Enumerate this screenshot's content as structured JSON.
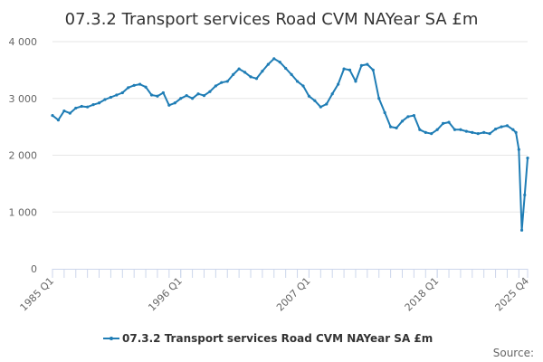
{
  "chart_data": {
    "type": "line",
    "title": "07.3.2 Transport services Road CVM NAYear SA £m",
    "xlabel": "",
    "ylabel": "",
    "ylim": [
      0,
      4000
    ],
    "yticks": [
      0,
      1000,
      2000,
      3000,
      4000
    ],
    "ytick_labels": [
      "0",
      "1 000",
      "2 000",
      "3 000",
      "4 000"
    ],
    "xlim": [
      "1985 Q1",
      "2025 Q4"
    ],
    "xtick_labels": [
      "1985 Q1",
      "1996 Q1",
      "2007 Q1",
      "2018 Q1",
      "2025 Q4"
    ],
    "grid": "horizontal",
    "legend": "bottom-center",
    "series": [
      {
        "name": "07.3.2 Transport services Road CVM NAYear SA £m",
        "color": "#1f7db5",
        "points": [
          [
            "1985 Q1",
            2700
          ],
          [
            "1985 Q3",
            2620
          ],
          [
            "1986 Q1",
            2780
          ],
          [
            "1986 Q3",
            2740
          ],
          [
            "1987 Q1",
            2830
          ],
          [
            "1987 Q3",
            2860
          ],
          [
            "1988 Q1",
            2850
          ],
          [
            "1988 Q3",
            2890
          ],
          [
            "1989 Q1",
            2920
          ],
          [
            "1989 Q3",
            2980
          ],
          [
            "1990 Q1",
            3020
          ],
          [
            "1990 Q3",
            3060
          ],
          [
            "1991 Q1",
            3100
          ],
          [
            "1991 Q3",
            3190
          ],
          [
            "1992 Q1",
            3230
          ],
          [
            "1992 Q3",
            3250
          ],
          [
            "1993 Q1",
            3200
          ],
          [
            "1993 Q3",
            3060
          ],
          [
            "1994 Q1",
            3040
          ],
          [
            "1994 Q3",
            3100
          ],
          [
            "1995 Q1",
            2880
          ],
          [
            "1995 Q3",
            2920
          ],
          [
            "1996 Q1",
            3000
          ],
          [
            "1996 Q3",
            3050
          ],
          [
            "1997 Q1",
            3000
          ],
          [
            "1997 Q3",
            3080
          ],
          [
            "1998 Q1",
            3050
          ],
          [
            "1998 Q3",
            3120
          ],
          [
            "1999 Q1",
            3220
          ],
          [
            "1999 Q3",
            3280
          ],
          [
            "2000 Q1",
            3300
          ],
          [
            "2000 Q3",
            3420
          ],
          [
            "2001 Q1",
            3520
          ],
          [
            "2001 Q3",
            3460
          ],
          [
            "2002 Q1",
            3380
          ],
          [
            "2002 Q3",
            3350
          ],
          [
            "2003 Q1",
            3480
          ],
          [
            "2003 Q3",
            3600
          ],
          [
            "2004 Q1",
            3700
          ],
          [
            "2004 Q3",
            3640
          ],
          [
            "2005 Q1",
            3530
          ],
          [
            "2005 Q3",
            3420
          ],
          [
            "2006 Q1",
            3300
          ],
          [
            "2006 Q3",
            3220
          ],
          [
            "2007 Q1",
            3040
          ],
          [
            "2007 Q3",
            2960
          ],
          [
            "2008 Q1",
            2850
          ],
          [
            "2008 Q3",
            2900
          ],
          [
            "2009 Q1",
            3080
          ],
          [
            "2009 Q3",
            3250
          ],
          [
            "2010 Q1",
            3520
          ],
          [
            "2010 Q3",
            3500
          ],
          [
            "2011 Q1",
            3300
          ],
          [
            "2011 Q3",
            3580
          ],
          [
            "2012 Q1",
            3600
          ],
          [
            "2012 Q3",
            3500
          ],
          [
            "2013 Q1",
            3000
          ],
          [
            "2013 Q3",
            2750
          ],
          [
            "2014 Q1",
            2500
          ],
          [
            "2014 Q3",
            2480
          ],
          [
            "2015 Q1",
            2600
          ],
          [
            "2015 Q3",
            2680
          ],
          [
            "2016 Q1",
            2700
          ],
          [
            "2016 Q3",
            2450
          ],
          [
            "2017 Q1",
            2400
          ],
          [
            "2017 Q3",
            2380
          ],
          [
            "2018 Q1",
            2450
          ],
          [
            "2018 Q3",
            2560
          ],
          [
            "2019 Q1",
            2580
          ],
          [
            "2019 Q3",
            2450
          ],
          [
            "2020 Q1",
            2450
          ],
          [
            "2020 Q3",
            2420
          ],
          [
            "2021 Q1",
            2400
          ],
          [
            "2021 Q3",
            2380
          ],
          [
            "2022 Q1",
            2400
          ],
          [
            "2022 Q3",
            2380
          ],
          [
            "2023 Q1",
            2460
          ],
          [
            "2023 Q3",
            2500
          ],
          [
            "2024 Q1",
            2520
          ],
          [
            "2024 Q3",
            2450
          ],
          [
            "2024 Q4",
            2400
          ],
          [
            "2025 Q1",
            2100
          ],
          [
            "2025 Q2",
            680
          ],
          [
            "2025 Q3",
            1300
          ],
          [
            "2025 Q4",
            1950
          ]
        ]
      }
    ]
  },
  "source_label": "Source:"
}
